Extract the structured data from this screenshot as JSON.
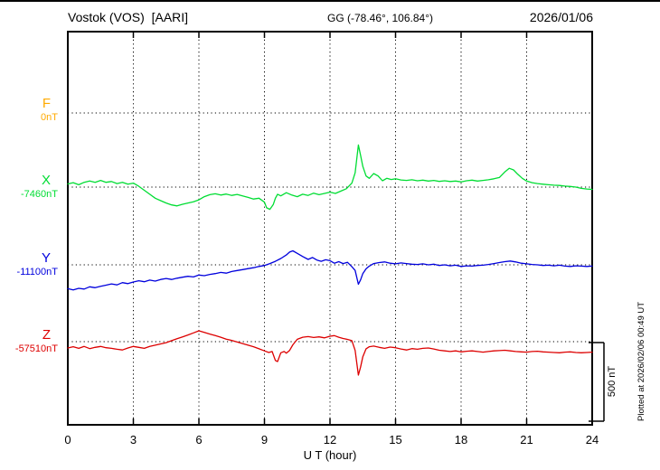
{
  "header": {
    "station_title": "Vostok (VOS)  [AARI]",
    "coordinates": "GG (-78.46°, 106.84°)",
    "date": "2026/01/06"
  },
  "annotations": {
    "plotted_at": "Plotted at 2026/02/06 00:49 UT",
    "scale_bar_label": "500 nT"
  },
  "axis": {
    "xlabel": "U T (hour)"
  },
  "chart_data": {
    "type": "line",
    "title": "Vostok (VOS) [AARI] magnetogram 2026/01/06",
    "xlabel": "U T (hour)",
    "xlim": [
      0,
      24
    ],
    "x_ticks": [
      0,
      3,
      6,
      9,
      12,
      15,
      18,
      21,
      24
    ],
    "unit": "nT",
    "scale_bar_nT": 500,
    "grid": "dotted vertical at 3h intervals, dotted horizontal at each channel baseline",
    "series": [
      {
        "name": "F",
        "baseline_label": "0nT",
        "color": "#ffaa00",
        "points": []
      },
      {
        "name": "X",
        "baseline_label": "-7460nT",
        "color": "#00dd33",
        "points": [
          [
            0,
            20
          ],
          [
            0.25,
            28
          ],
          [
            0.5,
            15
          ],
          [
            0.75,
            30
          ],
          [
            1,
            38
          ],
          [
            1.25,
            30
          ],
          [
            1.5,
            42
          ],
          [
            1.75,
            30
          ],
          [
            2,
            35
          ],
          [
            2.25,
            22
          ],
          [
            2.5,
            30
          ],
          [
            2.75,
            18
          ],
          [
            3,
            25
          ],
          [
            3.25,
            5
          ],
          [
            3.5,
            -20
          ],
          [
            3.75,
            -45
          ],
          [
            4,
            -70
          ],
          [
            4.25,
            -85
          ],
          [
            4.5,
            -100
          ],
          [
            4.75,
            -112
          ],
          [
            5,
            -118
          ],
          [
            5.25,
            -108
          ],
          [
            5.5,
            -100
          ],
          [
            5.75,
            -92
          ],
          [
            6,
            -80
          ],
          [
            6.25,
            -60
          ],
          [
            6.5,
            -48
          ],
          [
            6.75,
            -42
          ],
          [
            7,
            -50
          ],
          [
            7.25,
            -44
          ],
          [
            7.5,
            -52
          ],
          [
            7.75,
            -46
          ],
          [
            8,
            -55
          ],
          [
            8.25,
            -65
          ],
          [
            8.5,
            -75
          ],
          [
            8.75,
            -70
          ],
          [
            9,
            -95
          ],
          [
            9.1,
            -130
          ],
          [
            9.25,
            -140
          ],
          [
            9.4,
            -110
          ],
          [
            9.5,
            -70
          ],
          [
            9.6,
            -45
          ],
          [
            9.75,
            -55
          ],
          [
            10,
            -35
          ],
          [
            10.25,
            -50
          ],
          [
            10.5,
            -60
          ],
          [
            10.75,
            -45
          ],
          [
            11,
            -52
          ],
          [
            11.25,
            -38
          ],
          [
            11.5,
            -48
          ],
          [
            11.75,
            -40
          ],
          [
            12,
            -32
          ],
          [
            12.25,
            -40
          ],
          [
            12.5,
            -25
          ],
          [
            12.75,
            -10
          ],
          [
            13,
            25
          ],
          [
            13.15,
            90
          ],
          [
            13.3,
            265
          ],
          [
            13.4,
            200
          ],
          [
            13.5,
            130
          ],
          [
            13.65,
            70
          ],
          [
            13.8,
            55
          ],
          [
            14,
            85
          ],
          [
            14.2,
            70
          ],
          [
            14.4,
            40
          ],
          [
            14.6,
            55
          ],
          [
            14.8,
            48
          ],
          [
            15,
            52
          ],
          [
            15.25,
            45
          ],
          [
            15.5,
            42
          ],
          [
            15.75,
            46
          ],
          [
            16,
            40
          ],
          [
            16.25,
            44
          ],
          [
            16.5,
            38
          ],
          [
            16.75,
            42
          ],
          [
            17,
            36
          ],
          [
            17.25,
            40
          ],
          [
            17.5,
            35
          ],
          [
            17.75,
            38
          ],
          [
            18,
            33
          ],
          [
            18.25,
            40
          ],
          [
            18.5,
            44
          ],
          [
            18.75,
            38
          ],
          [
            19,
            42
          ],
          [
            19.25,
            46
          ],
          [
            19.5,
            52
          ],
          [
            19.75,
            60
          ],
          [
            20,
            95
          ],
          [
            20.2,
            118
          ],
          [
            20.4,
            108
          ],
          [
            20.6,
            80
          ],
          [
            20.8,
            55
          ],
          [
            21,
            38
          ],
          [
            21.25,
            28
          ],
          [
            21.5,
            22
          ],
          [
            21.75,
            18
          ],
          [
            22,
            15
          ],
          [
            22.25,
            12
          ],
          [
            22.5,
            10
          ],
          [
            22.75,
            6
          ],
          [
            23,
            4
          ],
          [
            23.25,
            0
          ],
          [
            23.5,
            -8
          ],
          [
            23.75,
            -12
          ],
          [
            24,
            -14
          ]
        ]
      },
      {
        "name": "Y",
        "baseline_label": "-11100nT",
        "color": "#0000dd",
        "points": [
          [
            0,
            -150
          ],
          [
            0.25,
            -158
          ],
          [
            0.5,
            -148
          ],
          [
            0.75,
            -152
          ],
          [
            1,
            -138
          ],
          [
            1.25,
            -144
          ],
          [
            1.5,
            -135
          ],
          [
            1.75,
            -128
          ],
          [
            2,
            -120
          ],
          [
            2.25,
            -126
          ],
          [
            2.5,
            -112
          ],
          [
            2.75,
            -118
          ],
          [
            3,
            -108
          ],
          [
            3.25,
            -100
          ],
          [
            3.5,
            -106
          ],
          [
            3.75,
            -96
          ],
          [
            4,
            -102
          ],
          [
            4.25,
            -92
          ],
          [
            4.5,
            -86
          ],
          [
            4.75,
            -92
          ],
          [
            5,
            -84
          ],
          [
            5.25,
            -78
          ],
          [
            5.5,
            -72
          ],
          [
            5.75,
            -76
          ],
          [
            6,
            -64
          ],
          [
            6.25,
            -68
          ],
          [
            6.5,
            -60
          ],
          [
            6.75,
            -55
          ],
          [
            7,
            -48
          ],
          [
            7.25,
            -52
          ],
          [
            7.5,
            -42
          ],
          [
            7.75,
            -36
          ],
          [
            8,
            -30
          ],
          [
            8.25,
            -24
          ],
          [
            8.5,
            -18
          ],
          [
            8.75,
            -10
          ],
          [
            9,
            -4
          ],
          [
            9.25,
            8
          ],
          [
            9.5,
            22
          ],
          [
            9.75,
            40
          ],
          [
            10,
            62
          ],
          [
            10.15,
            80
          ],
          [
            10.3,
            88
          ],
          [
            10.5,
            72
          ],
          [
            10.75,
            52
          ],
          [
            11,
            34
          ],
          [
            11.2,
            46
          ],
          [
            11.4,
            30
          ],
          [
            11.6,
            22
          ],
          [
            11.8,
            32
          ],
          [
            12,
            26
          ],
          [
            12.2,
            10
          ],
          [
            12.4,
            20
          ],
          [
            12.6,
            8
          ],
          [
            12.8,
            16
          ],
          [
            13,
            -12
          ],
          [
            13.15,
            -35
          ],
          [
            13.3,
            -122
          ],
          [
            13.4,
            -95
          ],
          [
            13.5,
            -55
          ],
          [
            13.65,
            -25
          ],
          [
            13.8,
            -8
          ],
          [
            14,
            8
          ],
          [
            14.25,
            14
          ],
          [
            14.5,
            18
          ],
          [
            14.75,
            10
          ],
          [
            15,
            6
          ],
          [
            15.25,
            12
          ],
          [
            15.5,
            8
          ],
          [
            15.75,
            4
          ],
          [
            16,
            2
          ],
          [
            16.25,
            6
          ],
          [
            16.5,
            0
          ],
          [
            16.75,
            4
          ],
          [
            17,
            -4
          ],
          [
            17.25,
            0
          ],
          [
            17.5,
            -6
          ],
          [
            17.75,
            -2
          ],
          [
            18,
            -10
          ],
          [
            18.25,
            -6
          ],
          [
            18.5,
            -8
          ],
          [
            18.75,
            -4
          ],
          [
            19,
            -2
          ],
          [
            19.25,
            2
          ],
          [
            19.5,
            8
          ],
          [
            19.75,
            14
          ],
          [
            20,
            20
          ],
          [
            20.25,
            24
          ],
          [
            20.5,
            18
          ],
          [
            20.75,
            10
          ],
          [
            21,
            6
          ],
          [
            21.25,
            2
          ],
          [
            21.5,
            0
          ],
          [
            21.75,
            -4
          ],
          [
            22,
            -2
          ],
          [
            22.25,
            -6
          ],
          [
            22.5,
            -2
          ],
          [
            22.75,
            -8
          ],
          [
            23,
            -10
          ],
          [
            23.25,
            -6
          ],
          [
            23.5,
            -8
          ],
          [
            23.75,
            -10
          ],
          [
            24,
            -8
          ]
        ]
      },
      {
        "name": "Z",
        "baseline_label": "-57510nT",
        "color": "#dd0000",
        "points": [
          [
            0,
            -40
          ],
          [
            0.25,
            -32
          ],
          [
            0.5,
            -42
          ],
          [
            0.75,
            -30
          ],
          [
            1,
            -44
          ],
          [
            1.25,
            -36
          ],
          [
            1.5,
            -30
          ],
          [
            1.75,
            -38
          ],
          [
            2,
            -42
          ],
          [
            2.25,
            -48
          ],
          [
            2.5,
            -52
          ],
          [
            2.75,
            -40
          ],
          [
            3,
            -30
          ],
          [
            3.25,
            -36
          ],
          [
            3.5,
            -42
          ],
          [
            3.75,
            -30
          ],
          [
            4,
            -22
          ],
          [
            4.25,
            -14
          ],
          [
            4.5,
            -6
          ],
          [
            4.75,
            6
          ],
          [
            5,
            18
          ],
          [
            5.25,
            30
          ],
          [
            5.5,
            42
          ],
          [
            5.75,
            55
          ],
          [
            6,
            68
          ],
          [
            6.25,
            58
          ],
          [
            6.5,
            48
          ],
          [
            6.75,
            38
          ],
          [
            7,
            28
          ],
          [
            7.25,
            16
          ],
          [
            7.5,
            8
          ],
          [
            7.75,
            -2
          ],
          [
            8,
            -12
          ],
          [
            8.25,
            -22
          ],
          [
            8.5,
            -32
          ],
          [
            8.75,
            -45
          ],
          [
            9,
            -58
          ],
          [
            9.2,
            -68
          ],
          [
            9.35,
            -62
          ],
          [
            9.5,
            -118
          ],
          [
            9.6,
            -125
          ],
          [
            9.75,
            -70
          ],
          [
            9.9,
            -62
          ],
          [
            10,
            -72
          ],
          [
            10.15,
            -55
          ],
          [
            10.3,
            -20
          ],
          [
            10.5,
            15
          ],
          [
            10.75,
            28
          ],
          [
            11,
            32
          ],
          [
            11.25,
            26
          ],
          [
            11.5,
            30
          ],
          [
            11.75,
            24
          ],
          [
            12,
            34
          ],
          [
            12.2,
            38
          ],
          [
            12.4,
            28
          ],
          [
            12.6,
            20
          ],
          [
            12.8,
            14
          ],
          [
            13,
            6
          ],
          [
            13.15,
            -55
          ],
          [
            13.3,
            -210
          ],
          [
            13.4,
            -160
          ],
          [
            13.5,
            -95
          ],
          [
            13.65,
            -45
          ],
          [
            13.8,
            -32
          ],
          [
            14,
            -28
          ],
          [
            14.25,
            -36
          ],
          [
            14.5,
            -42
          ],
          [
            14.75,
            -34
          ],
          [
            15,
            -38
          ],
          [
            15.25,
            -46
          ],
          [
            15.5,
            -52
          ],
          [
            15.75,
            -44
          ],
          [
            16,
            -48
          ],
          [
            16.25,
            -42
          ],
          [
            16.5,
            -40
          ],
          [
            16.75,
            -46
          ],
          [
            17,
            -54
          ],
          [
            17.25,
            -58
          ],
          [
            17.5,
            -62
          ],
          [
            17.75,
            -58
          ],
          [
            18,
            -64
          ],
          [
            18.25,
            -60
          ],
          [
            18.5,
            -58
          ],
          [
            18.75,
            -62
          ],
          [
            19,
            -66
          ],
          [
            19.25,
            -62
          ],
          [
            19.5,
            -58
          ],
          [
            19.75,
            -56
          ],
          [
            20,
            -54
          ],
          [
            20.25,
            -58
          ],
          [
            20.5,
            -62
          ],
          [
            20.75,
            -64
          ],
          [
            21,
            -66
          ],
          [
            21.25,
            -62
          ],
          [
            21.5,
            -60
          ],
          [
            21.75,
            -64
          ],
          [
            22,
            -66
          ],
          [
            22.25,
            -68
          ],
          [
            22.5,
            -70
          ],
          [
            22.75,
            -66
          ],
          [
            23,
            -64
          ],
          [
            23.25,
            -68
          ],
          [
            23.5,
            -70
          ],
          [
            23.75,
            -68
          ],
          [
            24,
            -66
          ]
        ]
      }
    ]
  }
}
